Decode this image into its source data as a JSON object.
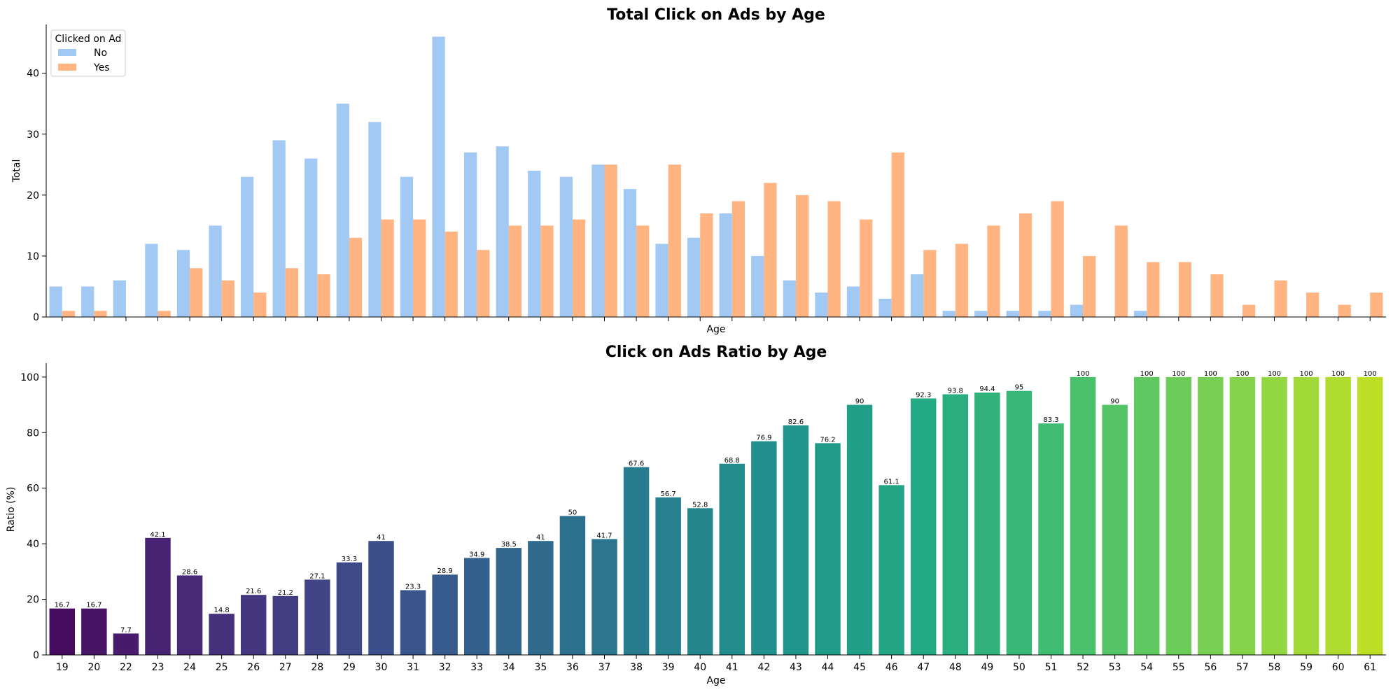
{
  "chart_data": [
    {
      "type": "bar",
      "title": "Total Click on Ads by Age",
      "xlabel": "Age",
      "ylabel": "Total",
      "ylim": [
        0,
        48
      ],
      "yticks": [
        0,
        10,
        20,
        30,
        40
      ],
      "x_tick_labels_shown": false,
      "categories": [
        "19",
        "20",
        "22",
        "23",
        "24",
        "25",
        "26",
        "27",
        "28",
        "29",
        "30",
        "31",
        "32",
        "33",
        "34",
        "35",
        "36",
        "37",
        "38",
        "39",
        "40",
        "41",
        "42",
        "43",
        "44",
        "45",
        "46",
        "47",
        "48",
        "49",
        "50",
        "51",
        "52",
        "53",
        "54",
        "55",
        "56",
        "57",
        "58",
        "59",
        "60",
        "61"
      ],
      "legend": {
        "title": "Clicked on Ad",
        "position": "top-left"
      },
      "series": [
        {
          "name": "No",
          "color": "#a1c9f4",
          "values": [
            5,
            5,
            6,
            12,
            11,
            15,
            23,
            29,
            26,
            35,
            32,
            23,
            46,
            27,
            28,
            24,
            23,
            25,
            21,
            12,
            13,
            17,
            10,
            6,
            4,
            5,
            3,
            7,
            1,
            1,
            1,
            1,
            2,
            0,
            1,
            0,
            0,
            0,
            0,
            0,
            0,
            0
          ]
        },
        {
          "name": "Yes",
          "color": "#ffb482",
          "values": [
            1,
            1,
            0,
            1,
            8,
            6,
            4,
            8,
            7,
            13,
            16,
            16,
            14,
            11,
            15,
            15,
            16,
            25,
            15,
            25,
            17,
            19,
            22,
            20,
            19,
            16,
            27,
            11,
            12,
            15,
            17,
            19,
            10,
            15,
            9,
            9,
            7,
            2,
            6,
            4,
            2,
            4
          ]
        }
      ]
    },
    {
      "type": "bar",
      "title": "Click on Ads Ratio by Age",
      "xlabel": "Age",
      "ylabel": "Ratio (%)",
      "ylim": [
        0,
        105
      ],
      "yticks": [
        0,
        20,
        40,
        60,
        80,
        100
      ],
      "palette": "viridis",
      "categories": [
        "19",
        "20",
        "22",
        "23",
        "24",
        "25",
        "26",
        "27",
        "28",
        "29",
        "30",
        "31",
        "32",
        "33",
        "34",
        "35",
        "36",
        "37",
        "38",
        "39",
        "40",
        "41",
        "42",
        "43",
        "44",
        "45",
        "46",
        "47",
        "48",
        "49",
        "50",
        "51",
        "52",
        "53",
        "54",
        "55",
        "56",
        "57",
        "58",
        "59",
        "60",
        "61"
      ],
      "values": [
        16.7,
        16.7,
        7.7,
        42.1,
        28.6,
        14.8,
        21.6,
        21.2,
        27.1,
        33.3,
        41,
        23.3,
        28.9,
        34.9,
        38.5,
        41,
        50,
        41.7,
        67.6,
        56.7,
        52.8,
        68.8,
        76.9,
        82.6,
        76.2,
        90,
        61.1,
        92.3,
        93.8,
        94.4,
        95,
        83.3,
        100,
        90,
        100,
        100,
        100,
        100,
        100,
        100,
        100,
        100
      ],
      "data_labels": [
        "16.7",
        "16.7",
        "7.7",
        "42.1",
        "28.6",
        "14.8",
        "21.6",
        "21.2",
        "27.1",
        "33.3",
        "41",
        "23.3",
        "28.9",
        "34.9",
        "38.5",
        "41",
        "50",
        "41.7",
        "67.6",
        "56.7",
        "52.8",
        "68.8",
        "76.9",
        "82.6",
        "76.2",
        "90",
        "61.1",
        "92.3",
        "93.8",
        "94.4",
        "95",
        "83.3",
        "100",
        "90",
        "100",
        "100",
        "100",
        "100",
        "100",
        "100",
        "100",
        "100"
      ]
    }
  ]
}
